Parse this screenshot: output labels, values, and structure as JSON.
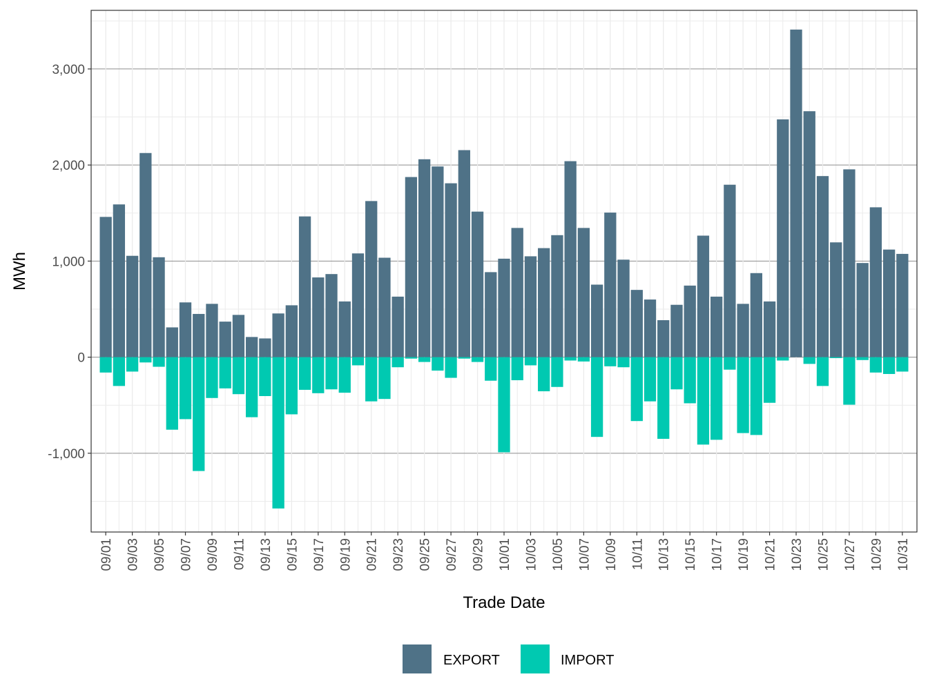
{
  "chart_data": {
    "type": "bar",
    "stacked": "diverging",
    "title": "",
    "xlabel": "Trade Date",
    "ylabel": "MWh",
    "ylim": [
      -1820,
      3610
    ],
    "yticks": [
      -1000,
      0,
      1000,
      2000,
      3000
    ],
    "ytick_labels": [
      "-1,000",
      "0",
      "1,000",
      "2,000",
      "3,000"
    ],
    "grid": true,
    "legend_position": "bottom",
    "categories": [
      "09/01",
      "09/02",
      "09/03",
      "09/04",
      "09/05",
      "09/06",
      "09/07",
      "09/08",
      "09/09",
      "09/10",
      "09/11",
      "09/12",
      "09/13",
      "09/14",
      "09/15",
      "09/16",
      "09/17",
      "09/18",
      "09/19",
      "09/20",
      "09/21",
      "09/22",
      "09/23",
      "09/24",
      "09/25",
      "09/26",
      "09/27",
      "09/28",
      "09/29",
      "09/30",
      "10/01",
      "10/02",
      "10/03",
      "10/04",
      "10/05",
      "10/06",
      "10/07",
      "10/08",
      "10/09",
      "10/10",
      "10/11",
      "10/12",
      "10/13",
      "10/14",
      "10/15",
      "10/16",
      "10/17",
      "10/18",
      "10/19",
      "10/20",
      "10/21",
      "10/22",
      "10/23",
      "10/24",
      "10/25",
      "10/26",
      "10/27",
      "10/28",
      "10/29",
      "10/30",
      "10/31"
    ],
    "x_tick_labels": [
      "09/01",
      "09/03",
      "09/05",
      "09/07",
      "09/09",
      "09/11",
      "09/13",
      "09/15",
      "09/17",
      "09/19",
      "09/21",
      "09/23",
      "09/25",
      "09/27",
      "09/29",
      "10/01",
      "10/03",
      "10/05",
      "10/07",
      "10/09",
      "10/11",
      "10/13",
      "10/15",
      "10/17",
      "10/19",
      "10/21",
      "10/23",
      "10/25",
      "10/27",
      "10/29",
      "10/31"
    ],
    "series": [
      {
        "name": "EXPORT",
        "color": "#4F7287",
        "values": [
          1460,
          1590,
          1055,
          2125,
          1040,
          310,
          570,
          450,
          555,
          370,
          440,
          210,
          195,
          455,
          540,
          1465,
          830,
          865,
          580,
          1080,
          1625,
          1035,
          630,
          1875,
          2060,
          1985,
          1810,
          2155,
          1515,
          885,
          1025,
          1345,
          1050,
          1135,
          1270,
          2040,
          1345,
          755,
          1505,
          1015,
          700,
          600,
          385,
          545,
          745,
          1265,
          630,
          1795,
          555,
          875,
          580,
          2475,
          3410,
          2560,
          1885,
          1195,
          1955,
          980,
          1560,
          1120,
          1075
        ]
      },
      {
        "name": "IMPORT",
        "color": "#00C9B1",
        "values": [
          -160,
          -300,
          -150,
          -55,
          -100,
          -755,
          -645,
          -1185,
          -425,
          -325,
          -385,
          -625,
          -405,
          -1575,
          -595,
          -340,
          -375,
          -335,
          -370,
          -85,
          -460,
          -435,
          -105,
          -15,
          -50,
          -140,
          -215,
          -15,
          -50,
          -245,
          -990,
          -240,
          -85,
          -355,
          -310,
          -35,
          -45,
          -830,
          -95,
          -105,
          -665,
          -460,
          -850,
          -335,
          -480,
          -910,
          -860,
          -130,
          -790,
          -810,
          -475,
          -35,
          0,
          -70,
          -300,
          -10,
          -495,
          -30,
          -160,
          -175,
          -150
        ]
      }
    ]
  }
}
